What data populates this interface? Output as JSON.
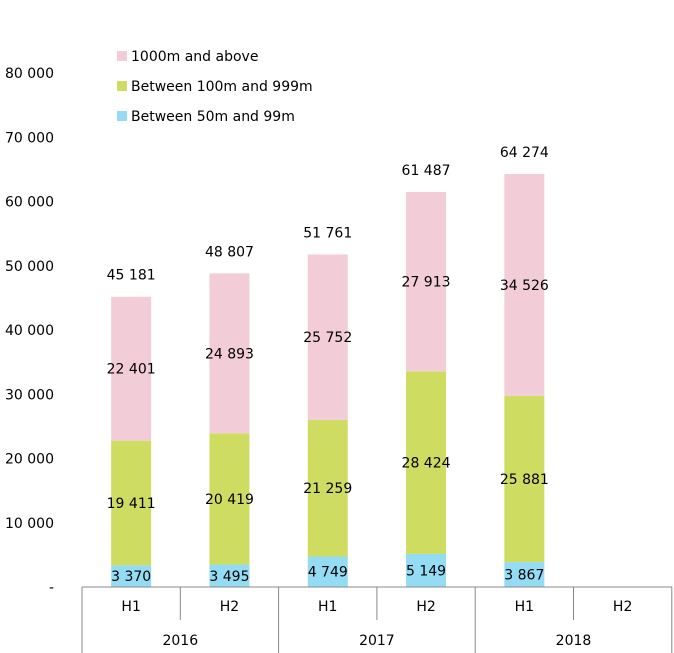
{
  "chart_data": {
    "type": "bar",
    "stacked": true,
    "title": "",
    "xlabel": "",
    "ylabel": "",
    "ylim": [
      0,
      80000
    ],
    "yticks": [
      0,
      10000,
      20000,
      30000,
      40000,
      50000,
      60000,
      70000,
      80000
    ],
    "ytick_labels": [
      "-",
      "10 000",
      "20 000",
      "30 000",
      "40 000",
      "50 000",
      "60 000",
      "70 000",
      "80 000"
    ],
    "categories": [
      "H1",
      "H2",
      "H1",
      "H2",
      "H1",
      "H2"
    ],
    "groups": [
      {
        "label": "2016",
        "categories": [
          "H1",
          "H2"
        ]
      },
      {
        "label": "2017",
        "categories": [
          "H1",
          "H2"
        ]
      },
      {
        "label": "2018",
        "categories": [
          "H1",
          "H2"
        ]
      }
    ],
    "series": [
      {
        "name": "Between 50m and 99m",
        "color": "#93dcf4",
        "values": [
          3370,
          3495,
          4749,
          5149,
          3867,
          null
        ],
        "labels": [
          "3 370",
          "3 495",
          "4 749",
          "5 149",
          "3 867",
          ""
        ]
      },
      {
        "name": "Between 100m and 999m",
        "color": "#cedd62",
        "values": [
          19411,
          20419,
          21259,
          28424,
          25881,
          null
        ],
        "labels": [
          "19 411",
          "20 419",
          "21 259",
          "28 424",
          "25 881",
          ""
        ]
      },
      {
        "name": "1000m and above",
        "color": "#f2cdd8",
        "values": [
          22401,
          24893,
          25752,
          27913,
          34526,
          null
        ],
        "labels": [
          "22 401",
          "24 893",
          "25 752",
          "27 913",
          "34 526",
          ""
        ]
      }
    ],
    "totals": [
      45181,
      48807,
      51761,
      61487,
      64274,
      null
    ],
    "total_labels": [
      "45 181",
      "48 807",
      "51 761",
      "61 487",
      "64 274",
      ""
    ],
    "legend": {
      "placement": "top-left",
      "order": [
        "1000m and above",
        "Between 100m and 999m",
        "Between 50m and 99m"
      ]
    },
    "grid": false
  }
}
